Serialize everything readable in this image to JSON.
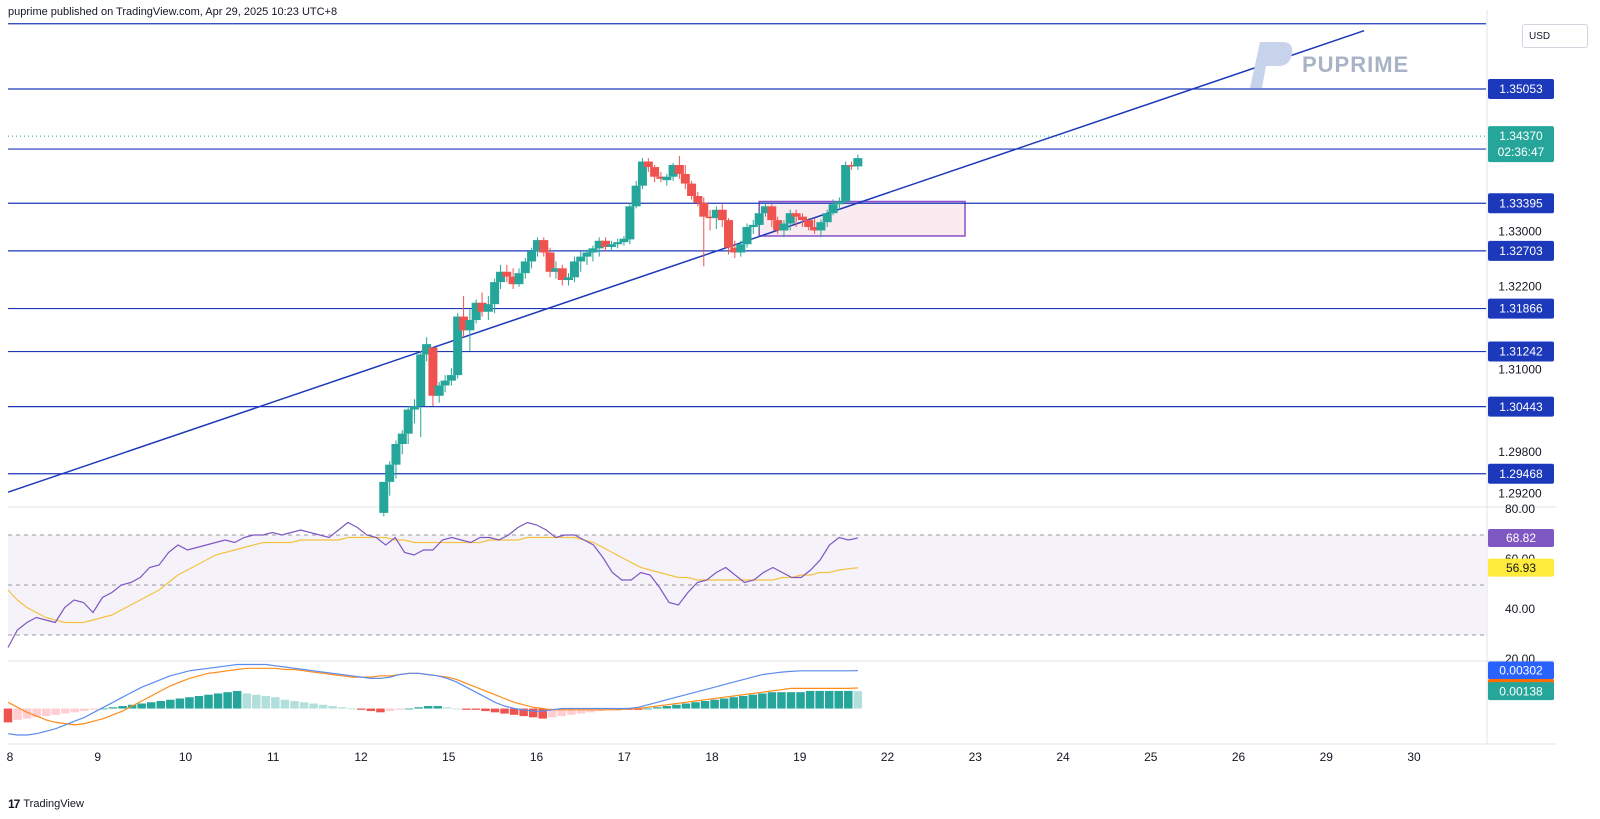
{
  "header": {
    "publish_line": "puprime published on TradingView.com, Apr 29, 2025 10:23 UTC+8"
  },
  "watermark": {
    "brand": "PUPRIME"
  },
  "currency_label": "USD",
  "footer": {
    "brand": "TradingView"
  },
  "colors": {
    "up": "#26a69a",
    "down": "#ef5350",
    "level_line": "#1c39bb",
    "rsi": "#7e57c2",
    "rsi_ma": "#f5c242",
    "macd": "#5b8def",
    "signal": "#ff8c1a",
    "box_border": "#8a4fc7",
    "box_fill": "#f7dde6"
  },
  "chart_data": [
    {
      "type": "candlestick",
      "title": "",
      "x_tick_labels": [
        "8",
        "9",
        "10",
        "11",
        "12",
        "15",
        "16",
        "17",
        "18",
        "19",
        "22",
        "23",
        "24",
        "25",
        "26",
        "29",
        "30"
      ],
      "y_tick_labels": [
        "1.33000",
        "1.32200",
        "1.31000",
        "1.29800",
        "1.29200"
      ],
      "levels": [
        "1.35053",
        "1.34181",
        "1.33395",
        "1.32703",
        "1.31866",
        "1.31242",
        "1.30443",
        "1.29468"
      ],
      "top_level": 1.36,
      "last_price": "1.34370",
      "countdown": "02:36:47",
      "ylim": [
        1.29,
        1.362
      ],
      "consolidation_box": {
        "x_range": [
          20.33,
          25.9
        ],
        "y_range": [
          1.3292,
          1.3342
        ]
      },
      "trendline": {
        "from": [
          0.0,
          1.292
        ],
        "to": [
          36.7,
          1.359
        ]
      },
      "candles": [
        [
          10.17,
          1.289,
          1.2935,
          1.2885,
          1.2935
        ],
        [
          10.33,
          1.2935,
          1.2965,
          1.2915,
          1.296
        ],
        [
          10.5,
          1.296,
          1.2995,
          1.294,
          1.299
        ],
        [
          10.67,
          1.299,
          1.301,
          1.2975,
          1.3005
        ],
        [
          10.83,
          1.3005,
          1.3045,
          1.299,
          1.304
        ],
        [
          11.0,
          1.304,
          1.3055,
          1.302,
          1.3045
        ],
        [
          11.17,
          1.3045,
          1.3125,
          1.3,
          1.312
        ],
        [
          11.33,
          1.312,
          1.3145,
          1.311,
          1.3135
        ],
        [
          11.5,
          1.313,
          1.313,
          1.3045,
          1.306
        ],
        [
          11.67,
          1.306,
          1.308,
          1.305,
          1.3075
        ],
        [
          11.83,
          1.3075,
          1.309,
          1.3065,
          1.3082
        ],
        [
          12.0,
          1.3082,
          1.31,
          1.3075,
          1.309
        ],
        [
          12.17,
          1.309,
          1.318,
          1.3085,
          1.3175
        ],
        [
          12.33,
          1.3175,
          1.3205,
          1.3145,
          1.3155
        ],
        [
          12.5,
          1.3155,
          1.3185,
          1.3125,
          1.317
        ],
        [
          12.67,
          1.317,
          1.32,
          1.3165,
          1.3195
        ],
        [
          12.83,
          1.3195,
          1.321,
          1.3175,
          1.3182
        ],
        [
          13.0,
          1.3182,
          1.3205,
          1.317,
          1.3193
        ],
        [
          13.17,
          1.3193,
          1.323,
          1.318,
          1.3225
        ],
        [
          13.33,
          1.3225,
          1.325,
          1.3215,
          1.324
        ],
        [
          13.5,
          1.324,
          1.325,
          1.3225,
          1.3233
        ],
        [
          13.67,
          1.3233,
          1.3245,
          1.3215,
          1.3222
        ],
        [
          13.83,
          1.3222,
          1.3245,
          1.3218,
          1.3238
        ],
        [
          14.0,
          1.3238,
          1.326,
          1.323,
          1.3255
        ],
        [
          14.17,
          1.3255,
          1.3275,
          1.3245,
          1.327
        ],
        [
          14.33,
          1.327,
          1.329,
          1.3262,
          1.3286
        ],
        [
          14.5,
          1.3286,
          1.329,
          1.3262,
          1.3268
        ],
        [
          14.67,
          1.3268,
          1.3275,
          1.3232,
          1.324
        ],
        [
          14.83,
          1.324,
          1.3255,
          1.323,
          1.3245
        ],
        [
          15.0,
          1.3245,
          1.325,
          1.322,
          1.3228
        ],
        [
          15.17,
          1.3228,
          1.3238,
          1.322,
          1.3232
        ],
        [
          15.33,
          1.3232,
          1.3262,
          1.3225,
          1.3255
        ],
        [
          15.5,
          1.3255,
          1.327,
          1.324,
          1.3262
        ],
        [
          15.67,
          1.3262,
          1.3272,
          1.325,
          1.3268
        ],
        [
          15.83,
          1.3268,
          1.3278,
          1.3255,
          1.3274
        ],
        [
          16.0,
          1.3274,
          1.329,
          1.3262,
          1.3285
        ],
        [
          16.17,
          1.3285,
          1.329,
          1.327,
          1.3276
        ],
        [
          16.33,
          1.3276,
          1.3285,
          1.327,
          1.328
        ],
        [
          16.5,
          1.328,
          1.3288,
          1.3274,
          1.3283
        ],
        [
          16.67,
          1.3283,
          1.3292,
          1.3278,
          1.3288
        ],
        [
          16.83,
          1.3287,
          1.334,
          1.328,
          1.3335
        ],
        [
          17.0,
          1.3335,
          1.3372,
          1.3332,
          1.3365
        ],
        [
          17.17,
          1.3365,
          1.3405,
          1.336,
          1.34
        ],
        [
          17.33,
          1.34,
          1.3405,
          1.3385,
          1.3392
        ],
        [
          17.5,
          1.3392,
          1.3395,
          1.337,
          1.3378
        ],
        [
          17.67,
          1.3378,
          1.3385,
          1.337,
          1.3375
        ],
        [
          17.83,
          1.3373,
          1.3382,
          1.3365,
          1.3378
        ],
        [
          18.0,
          1.3378,
          1.3398,
          1.3372,
          1.3395
        ],
        [
          18.17,
          1.3395,
          1.3408,
          1.3375,
          1.3382
        ],
        [
          18.33,
          1.3382,
          1.3395,
          1.336,
          1.3368
        ],
        [
          18.5,
          1.3368,
          1.3372,
          1.3345,
          1.335
        ],
        [
          18.67,
          1.335,
          1.3356,
          1.3335,
          1.334
        ],
        [
          18.83,
          1.334,
          1.3348,
          1.3248,
          1.332
        ],
        [
          19.0,
          1.332,
          1.333,
          1.33,
          1.3318
        ],
        [
          19.17,
          1.3318,
          1.3335,
          1.3302,
          1.333
        ],
        [
          19.33,
          1.333,
          1.3338,
          1.3305,
          1.3315
        ],
        [
          19.5,
          1.3315,
          1.3318,
          1.3265,
          1.3275
        ],
        [
          19.67,
          1.3275,
          1.3285,
          1.326,
          1.3268
        ],
        [
          19.83,
          1.3268,
          1.3285,
          1.3262,
          1.328
        ],
        [
          20.0,
          1.328,
          1.331,
          1.3275,
          1.3305
        ],
        [
          20.17,
          1.3305,
          1.3315,
          1.3295,
          1.3308
        ],
        [
          20.33,
          1.3308,
          1.333,
          1.33,
          1.3325
        ],
        [
          20.5,
          1.3325,
          1.3342,
          1.332,
          1.3335
        ],
        [
          20.67,
          1.3335,
          1.3338,
          1.3305,
          1.3315
        ],
        [
          20.83,
          1.3315,
          1.332,
          1.3295,
          1.33
        ],
        [
          21.0,
          1.33,
          1.3315,
          1.329,
          1.331
        ],
        [
          21.17,
          1.331,
          1.333,
          1.33,
          1.3325
        ],
        [
          21.33,
          1.3325,
          1.333,
          1.3305,
          1.332
        ],
        [
          21.5,
          1.332,
          1.3325,
          1.3305,
          1.3315
        ],
        [
          21.67,
          1.3315,
          1.3318,
          1.33,
          1.3305
        ],
        [
          21.83,
          1.3305,
          1.3318,
          1.3295,
          1.33
        ],
        [
          22.0,
          1.33,
          1.3316,
          1.329,
          1.3312
        ],
        [
          22.17,
          1.3312,
          1.333,
          1.3305,
          1.3325
        ],
        [
          22.33,
          1.3325,
          1.3345,
          1.3322,
          1.3338
        ],
        [
          22.5,
          1.3338,
          1.3348,
          1.333,
          1.3342
        ],
        [
          22.67,
          1.3342,
          1.34,
          1.334,
          1.3395
        ],
        [
          22.83,
          1.3395,
          1.34,
          1.3388,
          1.3393
        ],
        [
          23.0,
          1.3393,
          1.341,
          1.3388,
          1.3405
        ]
      ],
      "price_axis": {
        "type": "linear",
        "unit": "USD",
        "position": "right"
      }
    },
    {
      "type": "line",
      "title": "",
      "y_tick_labels": [
        "80.00",
        "60.00",
        "40.00",
        "20.00"
      ],
      "ylim": [
        20,
        80
      ],
      "bands": [
        70,
        50,
        30
      ],
      "last_value_rsi": "68.82",
      "last_value_ma": "56.93",
      "series": [
        {
          "values": [
            25,
            32,
            35,
            37,
            36,
            35,
            41,
            44,
            43,
            39,
            45,
            47,
            50,
            51,
            53,
            57,
            58,
            63,
            66,
            64,
            65,
            66,
            67,
            68,
            67,
            69,
            70,
            70,
            71,
            70,
            71,
            72,
            71,
            70,
            69,
            72,
            75,
            73,
            70,
            69,
            66,
            69,
            63,
            62,
            64,
            64,
            68,
            69,
            68,
            67,
            69,
            69,
            68,
            70,
            73,
            75,
            74,
            72,
            69,
            70,
            70,
            68,
            66,
            61,
            55,
            52,
            52,
            55,
            54,
            49,
            43,
            42,
            47,
            51,
            52,
            55,
            57,
            54,
            51,
            52,
            55,
            57,
            55,
            53,
            53,
            56,
            60,
            66,
            69,
            68,
            68.82
          ]
        },
        {
          "values": [
            48,
            44,
            41,
            39,
            37,
            36,
            35,
            35,
            35,
            36,
            37,
            38,
            40,
            42,
            44,
            46,
            48,
            51,
            54,
            56,
            58,
            60,
            62,
            63,
            64,
            65,
            66,
            67,
            67,
            67,
            67,
            68,
            68,
            68,
            68,
            68,
            69,
            69,
            69,
            69,
            69,
            68,
            68,
            67,
            67,
            67,
            67,
            67,
            67,
            67,
            67,
            68,
            68,
            68,
            68,
            69,
            69,
            69,
            69,
            69,
            69,
            68,
            67,
            65,
            63,
            61,
            59,
            57,
            56,
            55,
            54,
            53,
            53,
            52,
            52,
            52,
            52,
            52,
            52,
            52,
            52,
            52,
            53,
            53,
            54,
            54,
            55,
            55,
            56,
            56.5,
            56.93
          ]
        }
      ]
    },
    {
      "type": "bar+line",
      "title": "",
      "last_value_macd": "0.00302",
      "last_value_signal": "0.00163",
      "last_value_hist": "0.00138",
      "histogram": [
        -0.0011,
        -0.0009,
        -0.0008,
        -0.0007,
        -0.0006,
        -0.0005,
        -0.0004,
        -0.0003,
        -0.0002,
        -0.0001,
        0.0,
        0.0001,
        0.0002,
        0.0003,
        0.0004,
        0.0005,
        0.0006,
        0.0007,
        0.0008,
        0.0009,
        0.001,
        0.0011,
        0.0012,
        0.0013,
        0.0014,
        0.0012,
        0.0011,
        0.001,
        0.0009,
        0.0007,
        0.0006,
        0.0005,
        0.0004,
        0.0003,
        0.0002,
        0.0001,
        0.0,
        -0.0001,
        -0.0002,
        -0.0003,
        -0.0002,
        -0.0001,
        0.0,
        0.0001,
        0.0002,
        0.0002,
        0.0001,
        0.0,
        -0.0001,
        -0.0001,
        -0.0002,
        -0.0003,
        -0.0004,
        -0.0005,
        -0.0006,
        -0.0007,
        -0.0008,
        -0.0007,
        -0.0006,
        -0.0005,
        -0.0004,
        -0.0003,
        -0.0002,
        -0.0001,
        0.0,
        -0.0001,
        -0.0001,
        0.0,
        0.0001,
        0.0002,
        0.0003,
        0.0004,
        0.0005,
        0.0006,
        0.0007,
        0.0008,
        0.0009,
        0.001,
        0.0011,
        0.0012,
        0.0013,
        0.0013,
        0.0013,
        0.0013,
        0.0014,
        0.0014,
        0.0014,
        0.0014,
        0.0014,
        0.00138
      ],
      "macd": [
        -0.002,
        -0.0021,
        -0.0021,
        -0.002,
        -0.0018,
        -0.0016,
        -0.0013,
        -0.001,
        -0.0007,
        -0.0003,
        0.0001,
        0.0005,
        0.0009,
        0.0013,
        0.0017,
        0.002,
        0.0023,
        0.0026,
        0.0028,
        0.003,
        0.0031,
        0.0032,
        0.0033,
        0.0034,
        0.0035,
        0.0035,
        0.0035,
        0.0035,
        0.0034,
        0.0033,
        0.0032,
        0.0031,
        0.003,
        0.0029,
        0.0028,
        0.0027,
        0.0026,
        0.0025,
        0.0024,
        0.0024,
        0.0025,
        0.0027,
        0.0028,
        0.0028,
        0.0027,
        0.0026,
        0.0024,
        0.0021,
        0.0017,
        0.0013,
        0.0009,
        0.0005,
        0.0002,
        0.0,
        -0.0001,
        -0.0002,
        -0.0002,
        -0.0001,
        0.0,
        0.0,
        0.0,
        0.0,
        0.0,
        0.0,
        0.0,
        0.0,
        0.0001,
        0.0003,
        0.0005,
        0.0007,
        0.0009,
        0.0011,
        0.0013,
        0.0015,
        0.0017,
        0.0019,
        0.0021,
        0.0023,
        0.0025,
        0.0027,
        0.0028,
        0.0029,
        0.00295,
        0.003,
        0.003,
        0.003,
        0.003,
        0.003,
        0.003,
        0.00302
      ],
      "signal": [
        0.0005,
        0.0001,
        -0.0003,
        -0.0006,
        -0.0009,
        -0.0011,
        -0.0012,
        -0.0013,
        -0.0012,
        -0.001,
        -0.0008,
        -0.0005,
        -0.0002,
        0.0002,
        0.0006,
        0.001,
        0.0014,
        0.0018,
        0.0021,
        0.0024,
        0.0026,
        0.0028,
        0.0029,
        0.003,
        0.0031,
        0.0032,
        0.0032,
        0.0032,
        0.0032,
        0.0031,
        0.0031,
        0.003,
        0.0029,
        0.0028,
        0.0027,
        0.0026,
        0.0025,
        0.0025,
        0.0025,
        0.0026,
        0.0026,
        0.0027,
        0.0028,
        0.0028,
        0.0027,
        0.0026,
        0.0025,
        0.0023,
        0.002,
        0.0017,
        0.0014,
        0.0011,
        0.0008,
        0.0005,
        0.0003,
        0.0001,
        0.0,
        -0.0001,
        -0.0001,
        -0.0001,
        -0.0001,
        -0.0001,
        -0.0001,
        -0.0001,
        -0.0001,
        0.0,
        0.0,
        0.0001,
        0.0002,
        0.0003,
        0.0004,
        0.0005,
        0.0006,
        0.0007,
        0.0008,
        0.0009,
        0.001,
        0.0011,
        0.0012,
        0.0013,
        0.0014,
        0.0015,
        0.0016,
        0.0016,
        0.0016,
        0.0016,
        0.0016,
        0.0016,
        0.0016,
        0.00163
      ]
    }
  ]
}
